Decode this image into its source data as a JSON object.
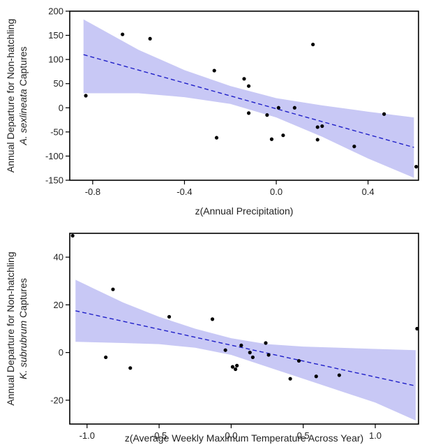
{
  "colors": {
    "band": "#c8c8f5",
    "trend": "#2020c8",
    "point": "#000000",
    "axis": "#000000"
  },
  "chart_data": [
    {
      "type": "scatter",
      "title": "",
      "xlabel": "z(Annual Precipitation)",
      "ylabel_line1": "Annual Departure for Non-hatchling",
      "ylabel_species": "A. sexlineata",
      "ylabel_suffix": " Captures",
      "xlim": [
        -0.9,
        0.62
      ],
      "ylim": [
        -150,
        200
      ],
      "xticks": [
        -0.8,
        -0.4,
        0.0,
        0.4
      ],
      "xtick_labels": [
        "-0.8",
        "-0.4",
        "0.0",
        "0.4"
      ],
      "yticks": [
        -150,
        -100,
        -50,
        0,
        50,
        100,
        150,
        200
      ],
      "ytick_labels": [
        "-150",
        "-100",
        "-50",
        "0",
        "50",
        "100",
        "150",
        "200"
      ],
      "points": [
        {
          "x": -0.83,
          "y": 25
        },
        {
          "x": -0.67,
          "y": 152
        },
        {
          "x": -0.55,
          "y": 143
        },
        {
          "x": -0.27,
          "y": 77
        },
        {
          "x": -0.26,
          "y": -62
        },
        {
          "x": -0.14,
          "y": 60
        },
        {
          "x": -0.12,
          "y": 45
        },
        {
          "x": -0.12,
          "y": -11
        },
        {
          "x": -0.04,
          "y": -15
        },
        {
          "x": -0.02,
          "y": -65
        },
        {
          "x": 0.01,
          "y": 0
        },
        {
          "x": 0.03,
          "y": -57
        },
        {
          "x": 0.08,
          "y": 0
        },
        {
          "x": 0.16,
          "y": 131
        },
        {
          "x": 0.18,
          "y": -40
        },
        {
          "x": 0.18,
          "y": -66
        },
        {
          "x": 0.2,
          "y": -38
        },
        {
          "x": 0.34,
          "y": -80
        },
        {
          "x": 0.47,
          "y": -13
        },
        {
          "x": 0.61,
          "y": -122
        }
      ],
      "trend": {
        "x": [
          -0.84,
          0.6
        ],
        "y": [
          110,
          -82
        ]
      },
      "band": {
        "x": [
          -0.84,
          -0.6,
          -0.4,
          -0.2,
          0.0,
          0.2,
          0.4,
          0.6
        ],
        "upper": [
          183,
          120,
          78,
          45,
          20,
          5,
          -8,
          -20
        ],
        "lower": [
          30,
          30,
          22,
          8,
          -20,
          -60,
          -105,
          -145
        ]
      }
    },
    {
      "type": "scatter",
      "title": "",
      "xlabel": "z(Average Weekly Maximum Temperature Across Year)",
      "ylabel_line1": "Annual Departure for Non-hatchling",
      "ylabel_species": "K. subrubrum",
      "ylabel_suffix": " Captures",
      "xlim": [
        -1.12,
        1.3
      ],
      "ylim": [
        -30,
        50
      ],
      "xticks": [
        -1.0,
        -0.5,
        0.0,
        0.5,
        1.0
      ],
      "xtick_labels": [
        "-1.0",
        "-0.5",
        "0.0",
        "0.5",
        "1.0"
      ],
      "yticks": [
        -20,
        0,
        20,
        40
      ],
      "ytick_labels": [
        "-20",
        "0",
        "20",
        "40"
      ],
      "points": [
        {
          "x": -1.1,
          "y": 49
        },
        {
          "x": -0.87,
          "y": -2
        },
        {
          "x": -0.82,
          "y": 26.5
        },
        {
          "x": -0.7,
          "y": -6.5
        },
        {
          "x": -0.43,
          "y": 15
        },
        {
          "x": -0.13,
          "y": 14
        },
        {
          "x": -0.04,
          "y": 1
        },
        {
          "x": 0.01,
          "y": -6
        },
        {
          "x": 0.03,
          "y": -7
        },
        {
          "x": 0.04,
          "y": -5.5
        },
        {
          "x": 0.07,
          "y": 3
        },
        {
          "x": 0.13,
          "y": 0
        },
        {
          "x": 0.15,
          "y": -2
        },
        {
          "x": 0.24,
          "y": 4
        },
        {
          "x": 0.26,
          "y": -1
        },
        {
          "x": 0.41,
          "y": -11
        },
        {
          "x": 0.47,
          "y": -3.5
        },
        {
          "x": 0.59,
          "y": -10
        },
        {
          "x": 0.75,
          "y": -9.5
        },
        {
          "x": 1.29,
          "y": 10
        }
      ],
      "trend": {
        "x": [
          -1.08,
          1.28
        ],
        "y": [
          17.5,
          -14
        ]
      },
      "band": {
        "x": [
          -1.08,
          -0.75,
          -0.5,
          -0.25,
          0.0,
          0.25,
          0.5,
          0.75,
          1.0,
          1.28
        ],
        "upper": [
          30.5,
          21,
          15,
          10,
          6,
          3.5,
          2.5,
          2,
          1.5,
          1
        ],
        "lower": [
          4.5,
          4,
          3.5,
          2,
          -1,
          -6,
          -11,
          -16,
          -21,
          -28.5
        ]
      }
    }
  ]
}
